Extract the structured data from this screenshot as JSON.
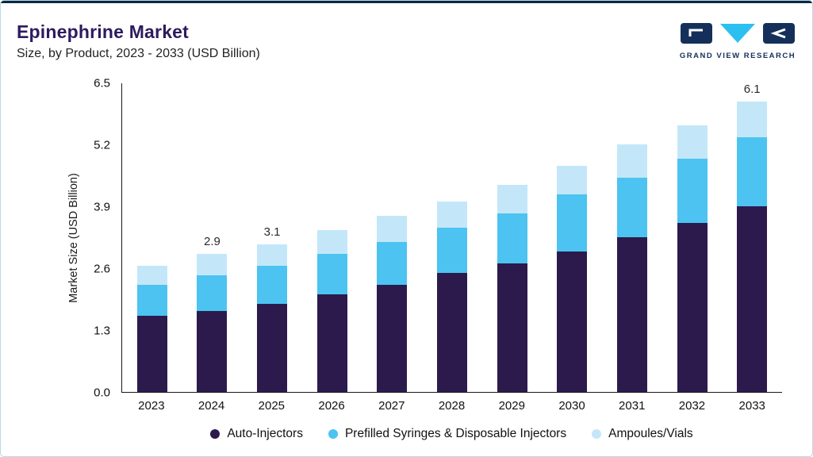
{
  "header": {
    "title": "Epinephrine Market",
    "subtitle": "Size, by Product, 2023 - 2033 (USD Billion)",
    "logo_text": "GRAND VIEW RESEARCH"
  },
  "colors": {
    "title": "#2d1b5e",
    "top_stripe": "#0b2840",
    "page_border": "#b9d8e8",
    "logo_navy": "#14305a",
    "logo_cyan": "#2bc0ef",
    "axis": "#1a1a1a"
  },
  "chart_data": {
    "type": "bar",
    "stacked": true,
    "title": "Epinephrine Market Size, by Product, 2023 - 2033 (USD Billion)",
    "xlabel": "",
    "ylabel": "Market Size (USD Billion)",
    "ylim": [
      0,
      6.5
    ],
    "y_ticks": [
      "0.0",
      "1.3",
      "2.6",
      "3.9",
      "5.2",
      "6.5"
    ],
    "grid": false,
    "legend_position": "bottom",
    "categories": [
      "2023",
      "2024",
      "2025",
      "2026",
      "2027",
      "2028",
      "2029",
      "2030",
      "2031",
      "2032",
      "2033"
    ],
    "series": [
      {
        "name": "Auto-Injectors",
        "color": "#2c1a4d",
        "values": [
          1.6,
          1.7,
          1.85,
          2.05,
          2.25,
          2.5,
          2.7,
          2.95,
          3.25,
          3.55,
          3.9
        ]
      },
      {
        "name": "Prefilled Syringes & Disposable Injectors",
        "color": "#4cc3f0",
        "values": [
          0.65,
          0.75,
          0.8,
          0.85,
          0.9,
          0.95,
          1.05,
          1.2,
          1.25,
          1.35,
          1.45
        ]
      },
      {
        "name": "Ampoules/Vials",
        "color": "#c3e7f8",
        "values": [
          0.4,
          0.45,
          0.45,
          0.5,
          0.55,
          0.55,
          0.6,
          0.6,
          0.7,
          0.7,
          0.75
        ]
      }
    ],
    "bar_labels": [
      null,
      "2.9",
      "3.1",
      null,
      null,
      null,
      null,
      null,
      null,
      null,
      "6.1"
    ]
  }
}
